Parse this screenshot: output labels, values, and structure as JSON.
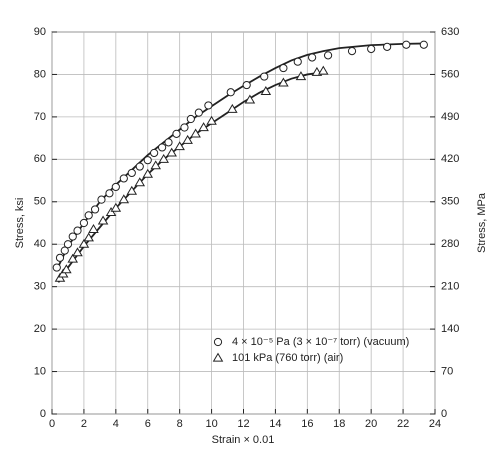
{
  "chart_data": {
    "type": "scatter",
    "x_label": "Strain × 0.01",
    "y_label": "Stress, ksi",
    "y2_label": "Stress, MPa",
    "xlim": [
      0,
      24
    ],
    "xticks": [
      0,
      2,
      4,
      6,
      8,
      10,
      12,
      14,
      16,
      18,
      20,
      22,
      24
    ],
    "ylim": [
      0,
      90
    ],
    "yticks": [
      0,
      10,
      20,
      30,
      40,
      50,
      60,
      70,
      80,
      90
    ],
    "y2lim": [
      0,
      630
    ],
    "y2ticks": [
      0,
      70,
      140,
      210,
      280,
      350,
      420,
      490,
      560,
      630
    ],
    "grid": true,
    "legend": "lower right",
    "series": [
      {
        "name": "4 × 10⁻⁵ Pa (3 × 10⁻⁷ torr) (vacuum)",
        "color": "#222222",
        "marker": "circle",
        "x": [
          0.3,
          0.5,
          0.8,
          1.0,
          1.3,
          1.6,
          2.0,
          2.3,
          2.7,
          3.1,
          3.6,
          4.0,
          4.5,
          5.0,
          5.5,
          6.0,
          6.4,
          6.9,
          7.3,
          7.8,
          8.3,
          8.7,
          9.2,
          9.8,
          11.2,
          12.2,
          13.3,
          14.5,
          15.4,
          16.3,
          17.3,
          18.8,
          20.0,
          21.0,
          22.2,
          23.3
        ],
        "values": [
          34.5,
          36.8,
          38.5,
          40,
          41.8,
          43.2,
          45,
          46.8,
          48.2,
          50.5,
          52,
          53.5,
          55.5,
          56.8,
          58.3,
          59.8,
          61.5,
          62.8,
          64,
          66,
          67.5,
          69.5,
          71,
          72.7,
          75.8,
          77.5,
          79.5,
          81.5,
          83,
          84,
          84.5,
          85.5,
          86,
          86.5,
          87,
          87
        ],
        "fit_x": [
          0.3,
          1,
          2,
          3,
          4,
          5,
          6,
          7,
          8,
          9,
          10,
          11,
          12,
          13,
          14,
          15,
          16,
          17,
          18,
          20,
          22,
          23.5
        ],
        "fit_values": [
          34,
          39.5,
          45,
          50,
          54,
          57.5,
          61,
          64,
          67,
          70,
          72.5,
          75,
          77.3,
          79.5,
          81.5,
          83.3,
          84.6,
          85.5,
          86.2,
          86.9,
          87.2,
          87.3
        ]
      },
      {
        "name": "101 kPa (760 torr) (air)",
        "color": "#222222",
        "marker": "triangle",
        "x": [
          0.5,
          0.7,
          0.9,
          1.3,
          1.6,
          2.0,
          2.3,
          2.6,
          3.2,
          3.7,
          4.0,
          4.5,
          5.0,
          5.5,
          6.0,
          6.5,
          7.0,
          7.5,
          8.0,
          8.5,
          9.0,
          9.5,
          10.0,
          11.3,
          12.4,
          13.4,
          14.5,
          15.6,
          16.6,
          17.0
        ],
        "values": [
          32,
          33,
          34,
          36.5,
          38,
          40,
          41.5,
          43.5,
          45.5,
          47.5,
          48.5,
          50.5,
          52.5,
          54.5,
          56.5,
          58.5,
          60,
          61.5,
          63,
          64.5,
          66,
          67.5,
          69,
          71.8,
          74,
          76,
          78,
          79.5,
          80.5,
          80.8
        ],
        "fit_x": [
          0.4,
          1,
          2,
          3,
          4,
          5,
          6,
          7,
          8,
          9,
          10,
          11,
          12,
          13,
          14,
          15,
          16,
          17
        ],
        "fit_values": [
          31,
          34.5,
          39.5,
          44,
          48.5,
          52.5,
          56.5,
          60,
          63,
          66,
          68.5,
          71,
          73.5,
          75.7,
          77.5,
          79,
          80,
          80.5
        ]
      }
    ]
  }
}
